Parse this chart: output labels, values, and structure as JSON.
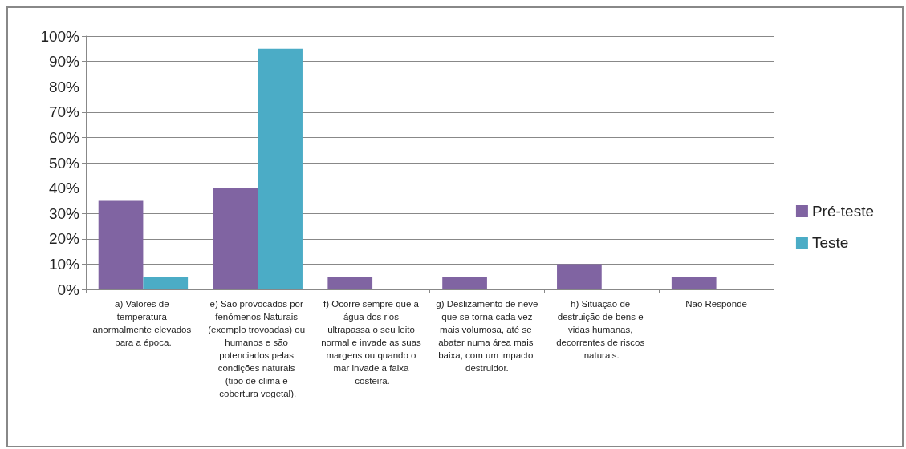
{
  "chart_data": {
    "type": "bar",
    "categories": [
      "a) Valores de temperatura anormalmente elevados para a época.",
      "e) São provocados por fenómenos Naturais (exemplo trovoadas) ou humanos e são potenciados pelas condições naturais (tipo de clima e cobertura vegetal).",
      "f) Ocorre sempre que a água dos rios ultrapassa o seu leito normal e invade as suas margens ou quando o mar invade a faixa costeira.",
      "g) Deslizamento de neve que se torna cada vez mais volumosa, até se abater numa área mais baixa, com um impacto destruidor.",
      "h) Situação de destruição de bens e vidas humanas, decorrentes de riscos naturais.",
      "Não Responde"
    ],
    "series": [
      {
        "name": "Pré-teste",
        "color": "#8064a2",
        "values": [
          35,
          40,
          5,
          5,
          10,
          5
        ]
      },
      {
        "name": "Teste",
        "color": "#4bacc6",
        "values": [
          5,
          95,
          0,
          0,
          0,
          0
        ]
      }
    ],
    "ylim": [
      0,
      100
    ],
    "yticks": [
      {
        "value": 0,
        "label": "0%"
      },
      {
        "value": 10,
        "label": "10%"
      },
      {
        "value": 20,
        "label": "20%"
      },
      {
        "value": 30,
        "label": "30%"
      },
      {
        "value": 40,
        "label": "40%"
      },
      {
        "value": 50,
        "label": "50%"
      },
      {
        "value": 60,
        "label": "60%"
      },
      {
        "value": 70,
        "label": "70%"
      },
      {
        "value": 80,
        "label": "80%"
      },
      {
        "value": 90,
        "label": "90%"
      },
      {
        "value": 100,
        "label": "100%"
      }
    ],
    "grid": "y",
    "legend": "right"
  }
}
